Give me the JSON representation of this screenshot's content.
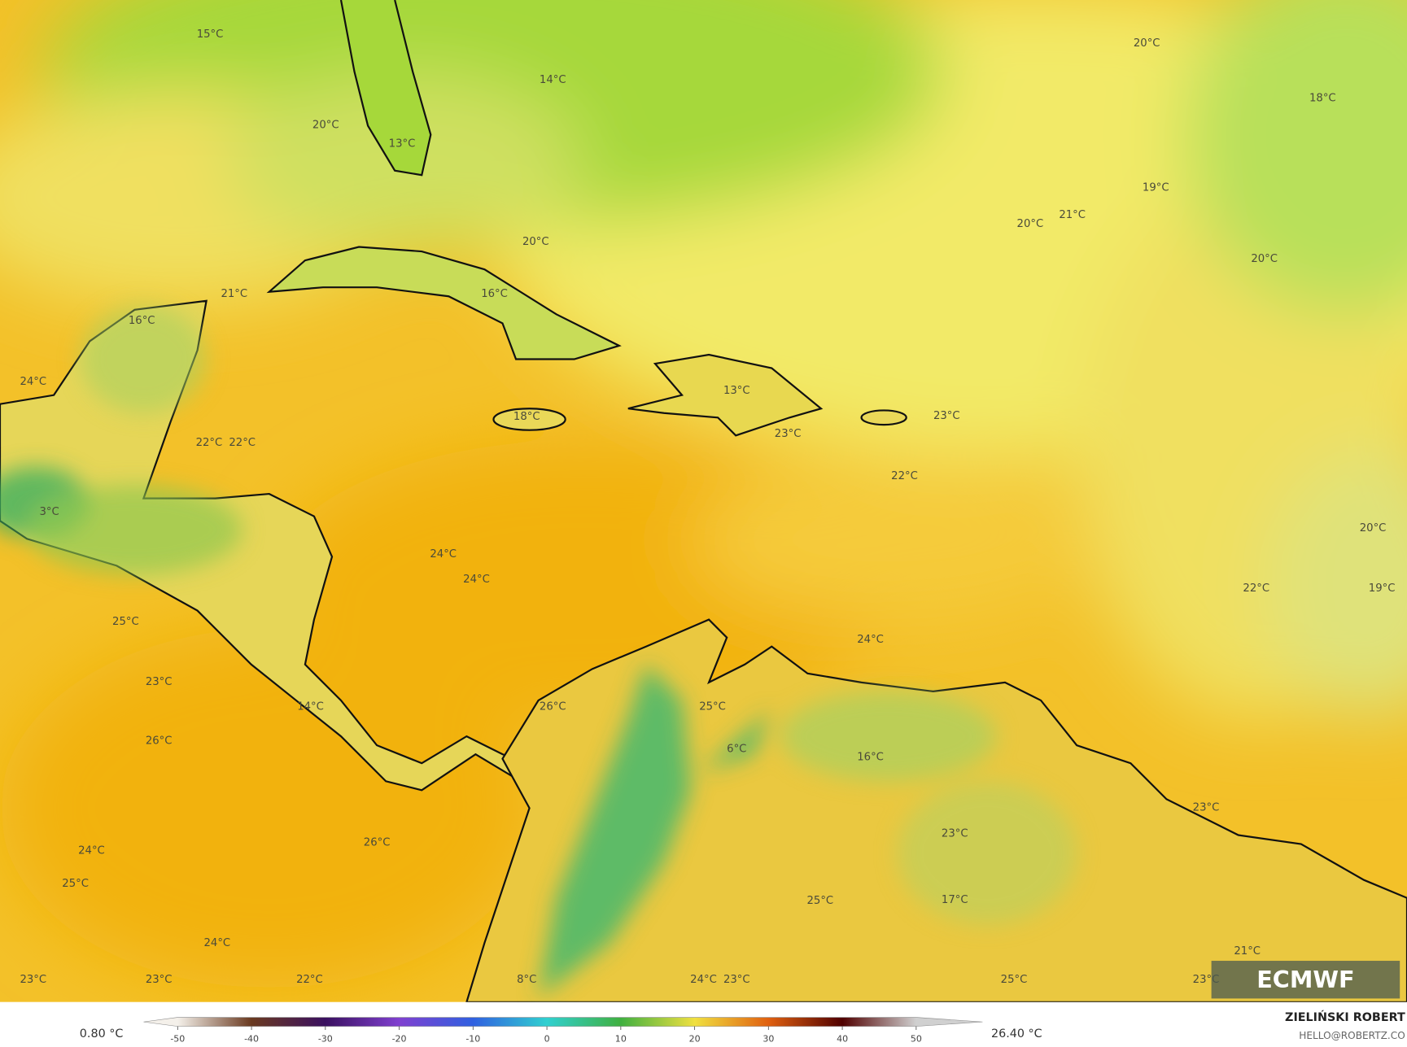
{
  "map": {
    "labels": [
      "15°C",
      "14°C",
      "20°C",
      "18°C",
      "20°C",
      "13°C",
      "19°C",
      "20°C",
      "21°C",
      "20°C",
      "20°C",
      "21°C",
      "16°C",
      "16°C",
      "24°C",
      "13°C",
      "18°C",
      "23°C",
      "23°C",
      "22°C",
      "22°C",
      "22°C",
      "3°C",
      "20°C",
      "24°C",
      "24°C",
      "22°C",
      "19°C",
      "25°C",
      "24°C",
      "23°C",
      "14°C",
      "26°C",
      "25°C",
      "26°C",
      "6°C",
      "16°C",
      "23°C",
      "23°C",
      "26°C",
      "24°C",
      "25°C",
      "25°C",
      "17°C",
      "24°C",
      "21°C",
      "23°C",
      "23°C",
      "22°C",
      "8°C",
      "24°C",
      "23°C",
      "25°C",
      "23°C"
    ]
  },
  "colorbar": {
    "min_label": "0.80 °C",
    "max_label": "26.40 °C",
    "ticks": [
      -50,
      -40,
      -30,
      -20,
      -10,
      0,
      10,
      20,
      30,
      40,
      50
    ]
  },
  "credit": {
    "author": "ZIELIŃSKI ROBERT",
    "contact": "HELLO@ROBERTZ.CO"
  },
  "logo": "ECMWF"
}
